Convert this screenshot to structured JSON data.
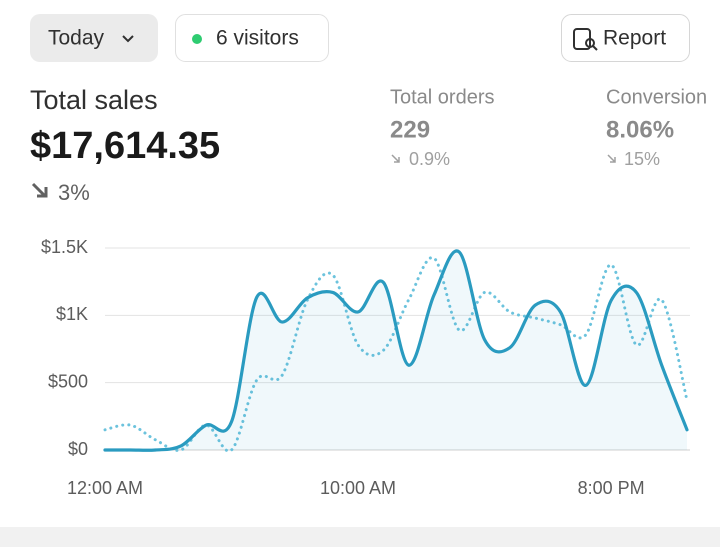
{
  "header": {
    "period": "Today",
    "visitors": "6 visitors",
    "report": "Report"
  },
  "metrics": [
    {
      "label": "Total sales",
      "value": "$17,614.35",
      "change": "3%"
    },
    {
      "label": "Total orders",
      "value": "229",
      "change": "0.9%"
    },
    {
      "label": "Conversion",
      "value": "8.06%",
      "change": "15%"
    }
  ],
  "chart_data": {
    "type": "line",
    "x": [
      0,
      1,
      2,
      3,
      4,
      5,
      6,
      7,
      8,
      9,
      10,
      11,
      12,
      13,
      14,
      15,
      16,
      17,
      18,
      19,
      20,
      21,
      22,
      23
    ],
    "series": [
      {
        "color": "#2a9bc0",
        "style": "solid",
        "fill": true,
        "values": [
          0,
          0,
          0,
          30,
          185,
          210,
          1135,
          950,
          1130,
          1170,
          1025,
          1245,
          630,
          1150,
          1470,
          820,
          760,
          1075,
          1025,
          480,
          1110,
          1170,
          630,
          150
        ]
      },
      {
        "color": "#6cc3dd",
        "style": "dotted",
        "fill": false,
        "values": [
          150,
          185,
          75,
          0,
          185,
          0,
          520,
          555,
          1115,
          1300,
          780,
          740,
          1115,
          1425,
          890,
          1170,
          1025,
          980,
          930,
          855,
          1375,
          780,
          1115,
          370
        ]
      }
    ],
    "xlim": [
      0,
      23
    ],
    "xticks": [
      {
        "value": 0,
        "label": "12:00 AM"
      },
      {
        "value": 10,
        "label": "10:00 AM"
      },
      {
        "value": 20,
        "label": "8:00 PM"
      }
    ],
    "ylim": [
      0,
      1500
    ],
    "yticks": [
      {
        "value": 0,
        "label": "$0"
      },
      {
        "value": 500,
        "label": "$500"
      },
      {
        "value": 1000,
        "label": "$1K"
      },
      {
        "value": 1500,
        "label": "$1.5K"
      }
    ],
    "grid": true
  }
}
